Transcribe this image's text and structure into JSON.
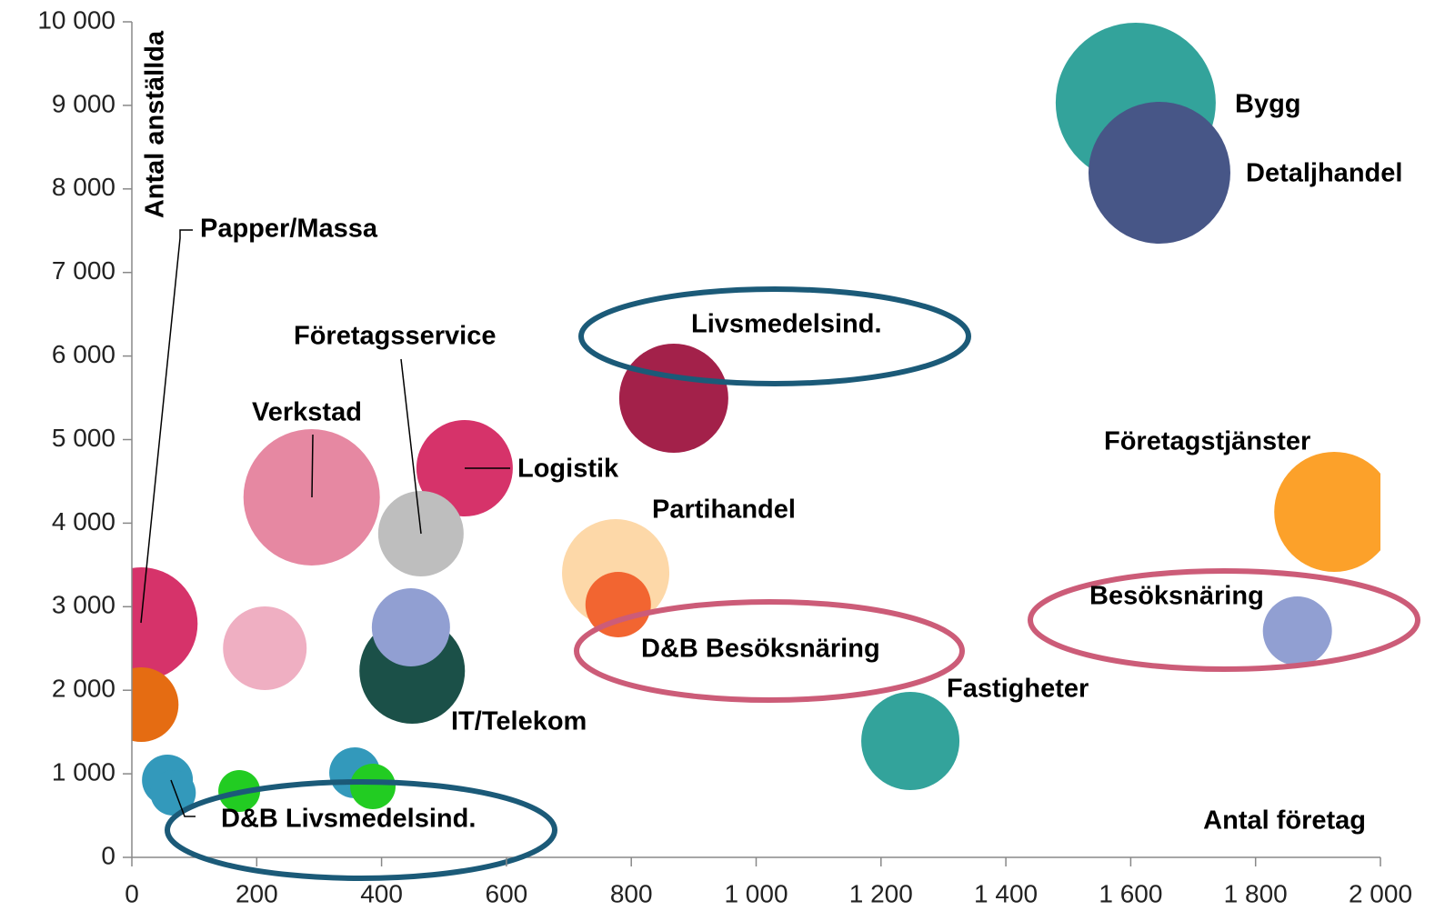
{
  "chart_data": {
    "type": "bubble",
    "y_label": "Antal anställda",
    "x_label": "Antal företag",
    "xlim": [
      0,
      2000
    ],
    "xticks": [
      0,
      200,
      400,
      600,
      800,
      {
        "value": 1000,
        "label": "1 000"
      },
      {
        "value": 1200,
        "label": "1 200"
      },
      {
        "value": 1400,
        "label": "1 400"
      },
      {
        "value": 1600,
        "label": "1 600"
      },
      {
        "value": 1800,
        "label": "1 800"
      },
      {
        "value": 2000,
        "label": "2 000"
      }
    ],
    "ylim": [
      0,
      10000
    ],
    "yticks": [
      0,
      {
        "value": 1000,
        "label": "1 000"
      },
      {
        "value": 2000,
        "label": "2 000"
      },
      {
        "value": 3000,
        "label": "3 000"
      },
      {
        "value": 4000,
        "label": "4 000"
      },
      {
        "value": 5000,
        "label": "5 000"
      },
      {
        "value": 6000,
        "label": "6 000"
      },
      {
        "value": 7000,
        "label": "7 000"
      },
      {
        "value": 8000,
        "label": "8 000"
      },
      {
        "value": 9000,
        "label": "9 000"
      },
      {
        "value": 10000,
        "label": "10 000"
      }
    ],
    "grid": false,
    "series": [
      {
        "name": "Papper/Massa",
        "color": "#d6336a",
        "x": [
          15
        ],
        "values": [
          2796
        ],
        "sizes": [
          3844
        ]
      },
      {
        "name": null,
        "color": "#e56c12",
        "x": [
          15
        ],
        "values": [
          1828
        ],
        "sizes": [
          1681
        ]
      },
      {
        "name": null,
        "color": "#efafc2",
        "x": [
          213
        ],
        "values": [
          2503
        ],
        "sizes": [
          2116
        ]
      },
      {
        "name": "D&B Livsmedelsind.",
        "color": "#3399bb",
        "x": [
          57
        ],
        "values": [
          925
        ],
        "sizes": [
          784
        ]
      },
      {
        "name": null,
        "color": "#3399bb",
        "x": [
          66
        ],
        "values": [
          772
        ],
        "sizes": [
          625
        ]
      },
      {
        "name": null,
        "color": "#22cc22",
        "x": [
          172
        ],
        "values": [
          794
        ],
        "sizes": [
          529
        ]
      },
      {
        "name": null,
        "color": "#3399bb",
        "x": [
          357
        ],
        "values": [
          1012
        ],
        "sizes": [
          784
        ]
      },
      {
        "name": null,
        "color": "#22cc22",
        "x": [
          386
        ],
        "values": [
          849
        ],
        "sizes": [
          625
        ]
      },
      {
        "name": "Verkstad",
        "color": "#e688a2",
        "x": [
          288
        ],
        "values": [
          4309
        ],
        "sizes": [
          5625
        ]
      },
      {
        "name": "Logistik",
        "color": "#d6336a",
        "x": [
          533
        ],
        "values": [
          4657
        ],
        "sizes": [
          2809
        ]
      },
      {
        "name": "Företagsservice",
        "color": "#bebebe",
        "x": [
          463
        ],
        "values": [
          3874
        ],
        "sizes": [
          2209
        ]
      },
      {
        "name": "IT/Telekom",
        "color": "#1b5048",
        "x": [
          449
        ],
        "values": [
          2231
        ],
        "sizes": [
          3364
        ]
      },
      {
        "name": null,
        "color": "#919fd2",
        "x": [
          447
        ],
        "values": [
          2753
        ],
        "sizes": [
          1849
        ]
      },
      {
        "name": "Partihandel",
        "color": "#fdd8a8",
        "x": [
          775
        ],
        "values": [
          3406
        ],
        "sizes": [
          3481
        ]
      },
      {
        "name": "D&B Besöksnäring",
        "color": "#f26531",
        "x": [
          779
        ],
        "values": [
          3025
        ],
        "sizes": [
          1296
        ]
      },
      {
        "name": "Livsmedelsind.",
        "color": "#a3214a",
        "x": [
          868
        ],
        "values": [
          5495
        ],
        "sizes": [
          3600
        ]
      },
      {
        "name": "Fastigheter",
        "color": "#33a39b",
        "x": [
          1247
        ],
        "values": [
          1393
        ],
        "sizes": [
          2916
        ]
      },
      {
        "name": "Bygg",
        "color": "#33a39b",
        "x": [
          1608
        ],
        "values": [
          9032
        ],
        "sizes": [
          7744
        ]
      },
      {
        "name": "Detaljhandel",
        "color": "#475687",
        "x": [
          1646
        ],
        "values": [
          8194
        ],
        "sizes": [
          6084
        ]
      },
      {
        "name": "Företagstjänster",
        "color": "#fca12a",
        "x": [
          1926
        ],
        "values": [
          4135
        ],
        "sizes": [
          4356
        ]
      },
      {
        "name": "Besöksnäring",
        "color": "#919fd2",
        "x": [
          1867
        ],
        "values": [
          2709
        ],
        "sizes": [
          1444
        ]
      }
    ]
  }
}
